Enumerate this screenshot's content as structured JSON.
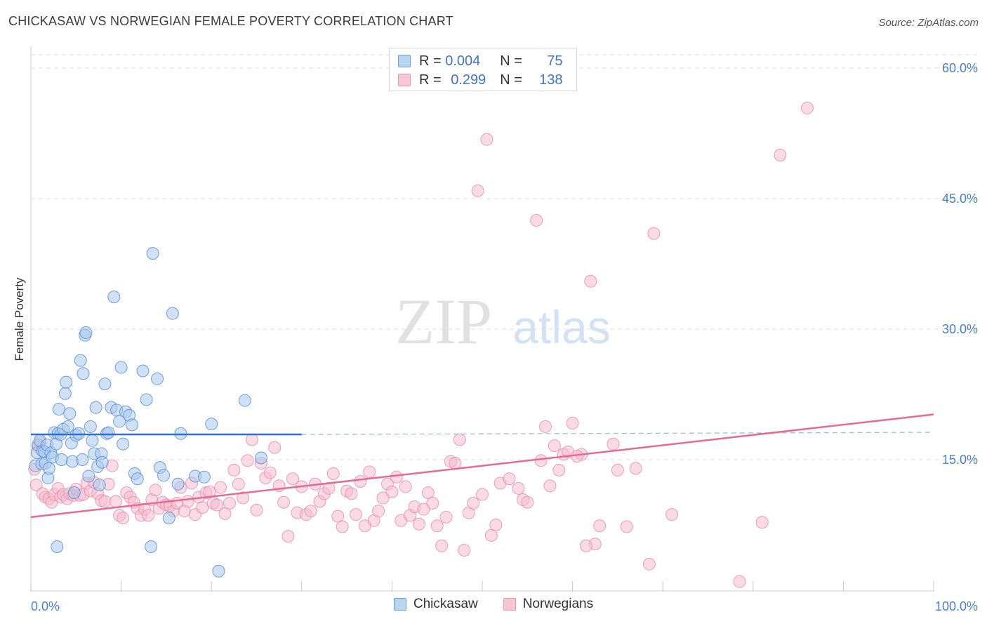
{
  "title": "CHICKASAW VS NORWEGIAN FEMALE POVERTY CORRELATION CHART",
  "source": "Source: ZipAtlas.com",
  "watermark": {
    "zip": "ZIP",
    "atlas": "atlas"
  },
  "stats": {
    "chickasaw": {
      "r_label": "R =",
      "r": "0.004",
      "n_label": "N =",
      "n": "75"
    },
    "norwegians": {
      "r_label": "R =",
      "r": "0.299",
      "n_label": "N =",
      "n": "138"
    }
  },
  "chart_data": {
    "type": "scatter",
    "ylabel": "Female Poverty",
    "xlabel": "",
    "xlim": [
      0,
      100
    ],
    "ylim": [
      0,
      64
    ],
    "x_tick_labels": [
      {
        "value": 0,
        "label": "0.0%"
      },
      {
        "value": 100,
        "label": "100.0%"
      }
    ],
    "x_minor_ticks": [
      0,
      10,
      20,
      30,
      40,
      50,
      60,
      70,
      80,
      90,
      100
    ],
    "y_ticks": [
      {
        "value": 15,
        "label": "15.0%"
      },
      {
        "value": 30,
        "label": "30.0%"
      },
      {
        "value": 45,
        "label": "45.0%"
      },
      {
        "value": 60,
        "label": "60.0%"
      }
    ],
    "grid": true,
    "legend_position": "bottom",
    "colors": {
      "chickasaw_fill": "#a9c8ee",
      "chickasaw_stroke": "#5b8fd0",
      "chickasaw_line": "#2f6fd0",
      "norwegians_fill": "#f6bccd",
      "norwegians_stroke": "#e58aa9",
      "norwegians_line": "#e56a96",
      "tick_label": "#4a7fcc",
      "grid": "#dddddd"
    },
    "series": [
      {
        "name": "Chickasaw",
        "trend": {
          "x0": 0,
          "y0": 17.9,
          "x1": 30,
          "y1": 17.9,
          "dashed_to": 100
        },
        "points": [
          [
            0.5,
            14.3
          ],
          [
            0.7,
            15.8
          ],
          [
            0.8,
            16.7
          ],
          [
            1.0,
            17.2
          ],
          [
            1.2,
            14.5
          ],
          [
            1.3,
            16.0
          ],
          [
            1.5,
            15.9
          ],
          [
            1.6,
            14.6
          ],
          [
            1.8,
            16.7
          ],
          [
            1.9,
            12.9
          ],
          [
            2.0,
            14.0
          ],
          [
            2.2,
            15.8
          ],
          [
            2.4,
            15.3
          ],
          [
            2.6,
            18.1
          ],
          [
            2.8,
            16.8
          ],
          [
            3.0,
            18.0
          ],
          [
            3.1,
            20.8
          ],
          [
            3.3,
            17.9
          ],
          [
            3.4,
            15.0
          ],
          [
            3.6,
            18.5
          ],
          [
            3.8,
            22.6
          ],
          [
            3.9,
            23.9
          ],
          [
            4.1,
            18.8
          ],
          [
            4.3,
            20.3
          ],
          [
            4.5,
            16.9
          ],
          [
            4.6,
            14.8
          ],
          [
            4.8,
            11.2
          ],
          [
            5.0,
            17.8
          ],
          [
            5.3,
            18.0
          ],
          [
            5.5,
            26.4
          ],
          [
            5.7,
            15.0
          ],
          [
            5.8,
            24.9
          ],
          [
            6.0,
            29.3
          ],
          [
            6.1,
            29.6
          ],
          [
            6.4,
            13.1
          ],
          [
            6.6,
            18.8
          ],
          [
            6.8,
            17.2
          ],
          [
            7.0,
            15.7
          ],
          [
            7.2,
            21.0
          ],
          [
            7.4,
            14.2
          ],
          [
            7.6,
            12.1
          ],
          [
            7.8,
            15.7
          ],
          [
            7.9,
            14.7
          ],
          [
            8.2,
            23.7
          ],
          [
            8.4,
            18.0
          ],
          [
            8.6,
            18.1
          ],
          [
            8.9,
            21.0
          ],
          [
            9.2,
            33.7
          ],
          [
            9.5,
            20.7
          ],
          [
            9.8,
            19.4
          ],
          [
            10.0,
            25.6
          ],
          [
            10.2,
            16.8
          ],
          [
            10.5,
            20.5
          ],
          [
            10.9,
            20.1
          ],
          [
            11.2,
            19.0
          ],
          [
            11.5,
            13.4
          ],
          [
            11.8,
            12.8
          ],
          [
            12.4,
            25.2
          ],
          [
            12.8,
            21.9
          ],
          [
            13.3,
            5.0
          ],
          [
            13.5,
            38.7
          ],
          [
            14.0,
            24.3
          ],
          [
            14.3,
            14.1
          ],
          [
            14.7,
            13.2
          ],
          [
            15.3,
            8.3
          ],
          [
            15.7,
            31.8
          ],
          [
            16.3,
            12.2
          ],
          [
            16.6,
            18.0
          ],
          [
            18.2,
            13.1
          ],
          [
            19.2,
            13.0
          ],
          [
            20.0,
            19.1
          ],
          [
            20.8,
            2.2
          ],
          [
            23.7,
            21.8
          ],
          [
            25.5,
            15.2
          ],
          [
            2.9,
            5.0
          ]
        ]
      },
      {
        "name": "Norwegians",
        "trend": {
          "x0": 0,
          "y0": 8.4,
          "x1": 100,
          "y1": 20.2
        },
        "points": [
          [
            0.4,
            13.9
          ],
          [
            0.6,
            12.1
          ],
          [
            0.8,
            16.5
          ],
          [
            1.0,
            17.0
          ],
          [
            1.3,
            11.1
          ],
          [
            1.6,
            10.7
          ],
          [
            2.0,
            10.5
          ],
          [
            2.3,
            10.1
          ],
          [
            2.6,
            11.0
          ],
          [
            3.0,
            11.7
          ],
          [
            3.3,
            10.7
          ],
          [
            3.6,
            11.0
          ],
          [
            4.0,
            10.5
          ],
          [
            4.3,
            11.1
          ],
          [
            4.7,
            10.9
          ],
          [
            5.0,
            11.6
          ],
          [
            5.4,
            10.9
          ],
          [
            5.8,
            11.0
          ],
          [
            6.2,
            12.3
          ],
          [
            6.6,
            11.4
          ],
          [
            7.0,
            12.4
          ],
          [
            7.4,
            11.1
          ],
          [
            7.8,
            10.3
          ],
          [
            8.2,
            10.2
          ],
          [
            8.6,
            12.2
          ],
          [
            9.0,
            14.3
          ],
          [
            9.4,
            10.2
          ],
          [
            9.8,
            8.6
          ],
          [
            10.2,
            8.3
          ],
          [
            10.6,
            11.2
          ],
          [
            11.0,
            10.7
          ],
          [
            11.4,
            10.1
          ],
          [
            11.8,
            9.4
          ],
          [
            12.2,
            8.6
          ],
          [
            12.6,
            9.3
          ],
          [
            13.0,
            8.6
          ],
          [
            13.4,
            10.4
          ],
          [
            13.8,
            11.5
          ],
          [
            14.2,
            9.4
          ],
          [
            14.6,
            10.1
          ],
          [
            15.0,
            9.8
          ],
          [
            15.4,
            9.7
          ],
          [
            15.8,
            9.1
          ],
          [
            16.2,
            10.0
          ],
          [
            16.6,
            11.8
          ],
          [
            17.0,
            9.1
          ],
          [
            17.4,
            10.2
          ],
          [
            17.8,
            12.3
          ],
          [
            18.2,
            8.7
          ],
          [
            18.6,
            10.7
          ],
          [
            19.0,
            9.5
          ],
          [
            19.4,
            11.2
          ],
          [
            19.8,
            11.3
          ],
          [
            20.2,
            10.0
          ],
          [
            20.6,
            9.8
          ],
          [
            21.0,
            11.8
          ],
          [
            21.5,
            8.8
          ],
          [
            22.0,
            10.0
          ],
          [
            22.5,
            13.8
          ],
          [
            23.0,
            12.2
          ],
          [
            23.5,
            10.6
          ],
          [
            24.0,
            14.9
          ],
          [
            24.5,
            17.3
          ],
          [
            25.0,
            9.2
          ],
          [
            25.5,
            14.6
          ],
          [
            26.0,
            12.9
          ],
          [
            26.5,
            13.5
          ],
          [
            27.0,
            16.4
          ],
          [
            27.5,
            12.0
          ],
          [
            28.0,
            10.1
          ],
          [
            28.5,
            6.2
          ],
          [
            29.0,
            12.8
          ],
          [
            29.5,
            8.9
          ],
          [
            30.0,
            11.9
          ],
          [
            30.5,
            8.7
          ],
          [
            31.0,
            9.1
          ],
          [
            31.5,
            12.2
          ],
          [
            32.0,
            10.2
          ],
          [
            32.5,
            11.1
          ],
          [
            33.0,
            11.7
          ],
          [
            33.5,
            13.4
          ],
          [
            34.0,
            8.5
          ],
          [
            34.5,
            7.3
          ],
          [
            35.0,
            11.4
          ],
          [
            35.5,
            11.1
          ],
          [
            36.0,
            8.7
          ],
          [
            36.5,
            12.5
          ],
          [
            37.0,
            7.4
          ],
          [
            37.5,
            13.6
          ],
          [
            38.0,
            8.0
          ],
          [
            38.5,
            9.1
          ],
          [
            39.0,
            10.6
          ],
          [
            39.5,
            12.2
          ],
          [
            40.0,
            11.3
          ],
          [
            40.5,
            13.0
          ],
          [
            41.0,
            8.0
          ],
          [
            41.5,
            11.9
          ],
          [
            42.0,
            8.6
          ],
          [
            42.5,
            9.6
          ],
          [
            43.0,
            7.6
          ],
          [
            43.5,
            9.3
          ],
          [
            44.0,
            11.2
          ],
          [
            44.5,
            10.0
          ],
          [
            45.0,
            7.4
          ],
          [
            45.5,
            5.1
          ],
          [
            46.0,
            8.4
          ],
          [
            46.5,
            14.8
          ],
          [
            47.0,
            14.6
          ],
          [
            47.5,
            17.3
          ],
          [
            48.0,
            4.6
          ],
          [
            48.5,
            8.9
          ],
          [
            49.0,
            10.0
          ],
          [
            49.5,
            45.9
          ],
          [
            50.0,
            11.0
          ],
          [
            50.5,
            51.8
          ],
          [
            51.0,
            6.3
          ],
          [
            51.5,
            7.5
          ],
          [
            52.0,
            12.3
          ],
          [
            53.0,
            12.8
          ],
          [
            54.0,
            11.7
          ],
          [
            54.5,
            10.4
          ],
          [
            55.0,
            10.1
          ],
          [
            56.0,
            42.5
          ],
          [
            56.5,
            14.9
          ],
          [
            57.0,
            18.8
          ],
          [
            58.0,
            16.6
          ],
          [
            59.0,
            15.6
          ],
          [
            60.0,
            19.2
          ],
          [
            61.0,
            15.6
          ],
          [
            62.0,
            35.5
          ],
          [
            63.0,
            7.4
          ],
          [
            64.5,
            16.8
          ],
          [
            65.0,
            13.8
          ],
          [
            66.0,
            7.3
          ],
          [
            67.0,
            14.0
          ],
          [
            69.0,
            41.0
          ],
          [
            71.0,
            8.7
          ],
          [
            81.0,
            7.8
          ],
          [
            86.0,
            55.4
          ],
          [
            83.0,
            50.0
          ],
          [
            62.5,
            5.3
          ],
          [
            68.5,
            3.0
          ],
          [
            78.5,
            1.0
          ],
          [
            59.5,
            15.9
          ],
          [
            60.5,
            15.4
          ],
          [
            61.5,
            5.1
          ],
          [
            58.5,
            13.8
          ],
          [
            57.5,
            12.0
          ]
        ]
      }
    ]
  },
  "legend": {
    "chickasaw": "Chickasaw",
    "norwegians": "Norwegians"
  }
}
